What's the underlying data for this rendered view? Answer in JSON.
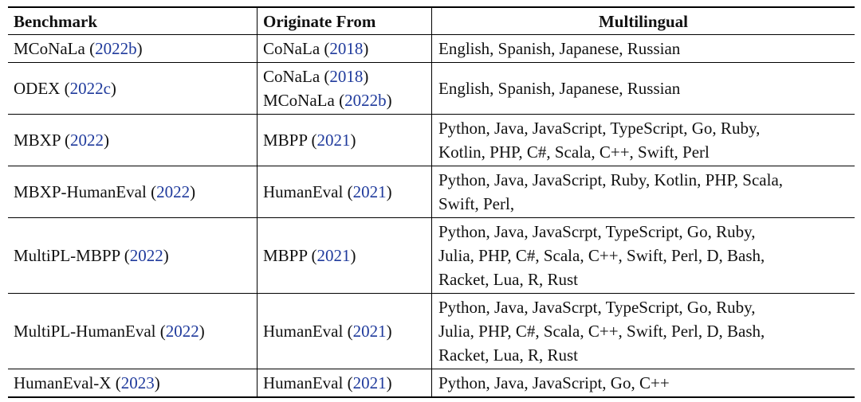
{
  "headers": [
    "Benchmark",
    "Originate From",
    "Multilingual"
  ],
  "rows": [
    {
      "name": "MCoNaLa",
      "cite": "2022b",
      "origin": [
        {
          "name": "CoNaLa",
          "cite": "2018"
        }
      ],
      "lang": [
        "English, Spanish, Japanese, Russian"
      ]
    },
    {
      "name": "ODEX",
      "cite": "2022c",
      "origin": [
        {
          "name": "CoNaLa",
          "cite": "2018"
        },
        {
          "name": "MCoNaLa",
          "cite": "2022b"
        }
      ],
      "lang": [
        "English, Spanish, Japanese, Russian"
      ]
    },
    {
      "name": "MBXP",
      "cite": "2022",
      "origin": [
        {
          "name": "MBPP",
          "cite": "2021"
        }
      ],
      "lang": [
        "Python, Java, JavaScript, TypeScript, Go, Ruby,",
        "Kotlin, PHP, C#, Scala, C++, Swift, Perl"
      ]
    },
    {
      "name": "MBXP-HumanEval",
      "cite": "2022",
      "origin": [
        {
          "name": "HumanEval",
          "cite": "2021"
        }
      ],
      "lang": [
        "Python, Java, JavaScript, Ruby, Kotlin, PHP, Scala,",
        "Swift, Perl,"
      ]
    },
    {
      "name": "MultiPL-MBPP",
      "cite": "2022",
      "origin": [
        {
          "name": "MBPP",
          "cite": "2021"
        }
      ],
      "lang": [
        "Python, Java, JavaScrpt, TypeScript, Go, Ruby,",
        "Julia, PHP, C#, Scala, C++, Swift, Perl, D, Bash,",
        "Racket, Lua,  R,  Rust"
      ]
    },
    {
      "name": "MultiPL-HumanEval",
      "cite": "2022",
      "origin": [
        {
          "name": "HumanEval",
          "cite": "2021"
        }
      ],
      "lang": [
        "Python, Java, JavaScrpt, TypeScript, Go, Ruby,",
        "Julia, PHP, C#, Scala, C++, Swift, Perl, D, Bash,",
        "Racket, Lua,  R,  Rust"
      ]
    },
    {
      "name": "HumanEval-X",
      "cite": "2023",
      "origin": [
        {
          "name": "HumanEval",
          "cite": "2021"
        }
      ],
      "lang": [
        "Python, Java, JavaScript, Go, C++"
      ]
    }
  ]
}
